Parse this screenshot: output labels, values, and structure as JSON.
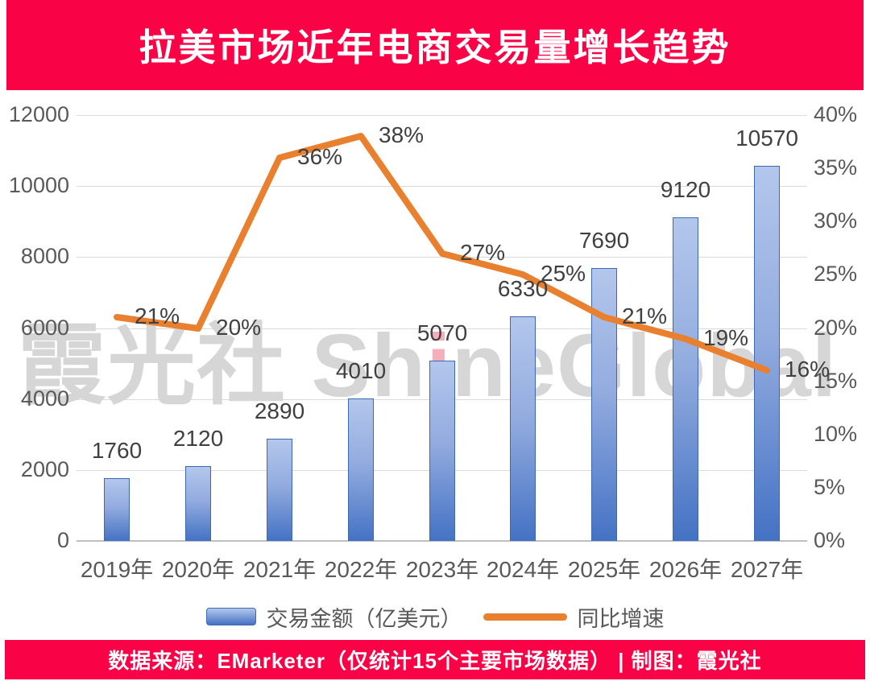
{
  "header": {
    "title": "拉美市场近年电商交易量增长趋势"
  },
  "watermark": {
    "pre": "霞光社 Sh",
    "accent": "i",
    "post": "neGlobal"
  },
  "chart_data": {
    "type": "combo-bar-line",
    "title": "拉美市场近年电商交易量增长趋势",
    "categories": [
      "2019年",
      "2020年",
      "2021年",
      "2022年",
      "2023年",
      "2024年",
      "2025年",
      "2026年",
      "2027年"
    ],
    "series": [
      {
        "name": "交易金额（亿美元）",
        "type": "bar",
        "axis": "left",
        "values": [
          1760,
          2120,
          2890,
          4010,
          5070,
          6330,
          7690,
          9120,
          10570
        ],
        "data_labels": [
          "1760",
          "2120",
          "2890",
          "4010",
          "5070",
          "6330",
          "7690",
          "9120",
          "10570"
        ],
        "color": "#4472C4",
        "color_light": "#B3C7EC"
      },
      {
        "name": "同比增速",
        "type": "line",
        "axis": "right",
        "values_percent": [
          21,
          20,
          36,
          38,
          27,
          25,
          21,
          19,
          16
        ],
        "data_labels": [
          "21%",
          "20%",
          "36%",
          "38%",
          "27%",
          "25%",
          "21%",
          "19%",
          "16%"
        ],
        "color": "#E8802F"
      }
    ],
    "left_axis": {
      "min": 0,
      "max": 12000,
      "tick_step": 2000,
      "ticks": [
        "0",
        "2000",
        "4000",
        "6000",
        "8000",
        "10000",
        "12000"
      ]
    },
    "right_axis": {
      "min": 0,
      "max": 40,
      "tick_step": 5,
      "ticks": [
        "0%",
        "5%",
        "10%",
        "15%",
        "20%",
        "25%",
        "30%",
        "35%",
        "40%"
      ]
    },
    "grid": true,
    "legend_position": "bottom"
  },
  "footer": {
    "text": "数据来源：EMarketer（仅统计15个主要市场数据） | 制图：霞光社"
  },
  "colors": {
    "banner": "#FA0246",
    "bar_top": "#B3C7EC",
    "bar_bottom": "#4472C4",
    "bar_border": "#3E68B0",
    "line": "#E8802F",
    "grid": "#D9D9D9",
    "axis_text": "#595959",
    "data_label_text": "#404040",
    "watermark_gray": "#D6D6D6",
    "watermark_accent": "#F6AEBA"
  }
}
